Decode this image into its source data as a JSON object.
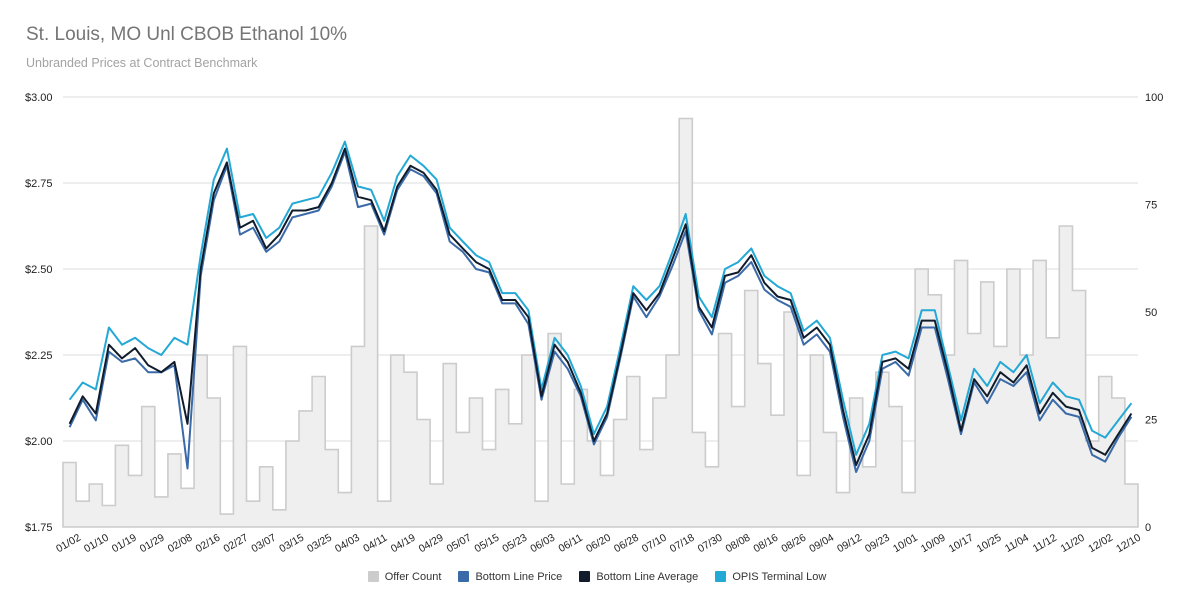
{
  "title": "St. Louis, MO Unl CBOB Ethanol 10%",
  "subtitle": "Unbranded Prices at Contract Benchmark",
  "colors": {
    "offer_count": "#cccccc",
    "offer_fill": "#efefef",
    "bottom_line_price": "#3a6aa8",
    "bottom_line_average": "#101c2c",
    "opis_terminal_low": "#24a8d6",
    "grid": "#dcdcdc"
  },
  "chart_data": {
    "type": "line",
    "title": "St. Louis, MO Unl CBOB Ethanol 10%",
    "subtitle": "Unbranded Prices at Contract Benchmark",
    "y_left": {
      "ticks": [
        "$3.00",
        "$2.75",
        "$2.50",
        "$2.25",
        "$2.00",
        "$1.75"
      ],
      "range": [
        1.75,
        3.0
      ]
    },
    "y_right": {
      "ticks": [
        "100",
        "75",
        "50",
        "25",
        "0"
      ],
      "range": [
        0,
        100
      ]
    },
    "x_ticks": [
      "01/02",
      "01/10",
      "01/19",
      "01/29",
      "02/08",
      "02/16",
      "02/27",
      "03/07",
      "03/15",
      "03/25",
      "04/03",
      "04/11",
      "04/19",
      "04/29",
      "05/07",
      "05/15",
      "05/23",
      "06/03",
      "06/11",
      "06/20",
      "06/28",
      "07/10",
      "07/18",
      "07/30",
      "08/08",
      "08/16",
      "08/26",
      "09/04",
      "09/12",
      "09/23",
      "10/01",
      "10/09",
      "10/17",
      "10/25",
      "11/04",
      "11/12",
      "11/20",
      "12/02",
      "12/10"
    ],
    "legend": [
      "Offer Count",
      "Bottom Line Price",
      "Bottom Line Average",
      "OPIS Terminal Low"
    ],
    "series": [
      {
        "name": "Bottom Line Average",
        "values": [
          2.05,
          2.13,
          2.08,
          2.28,
          2.24,
          2.27,
          2.22,
          2.2,
          2.23,
          2.05,
          2.5,
          2.72,
          2.81,
          2.62,
          2.64,
          2.56,
          2.6,
          2.67,
          2.67,
          2.68,
          2.75,
          2.85,
          2.71,
          2.7,
          2.61,
          2.74,
          2.8,
          2.78,
          2.73,
          2.6,
          2.56,
          2.52,
          2.5,
          2.41,
          2.41,
          2.36,
          2.13,
          2.28,
          2.23,
          2.14,
          2.0,
          2.08,
          2.25,
          2.43,
          2.38,
          2.43,
          2.53,
          2.63,
          2.39,
          2.33,
          2.48,
          2.49,
          2.54,
          2.46,
          2.42,
          2.41,
          2.3,
          2.33,
          2.28,
          2.09,
          1.93,
          2.02,
          2.23,
          2.24,
          2.21,
          2.35,
          2.35,
          2.2,
          2.03,
          2.18,
          2.13,
          2.2,
          2.17,
          2.22,
          2.08,
          2.14,
          2.1,
          2.09,
          1.98,
          1.96,
          2.02,
          2.08
        ]
      },
      {
        "name": "Bottom Line Price",
        "values": [
          2.04,
          2.12,
          2.06,
          2.26,
          2.23,
          2.24,
          2.2,
          2.2,
          2.22,
          1.92,
          2.48,
          2.7,
          2.8,
          2.6,
          2.62,
          2.55,
          2.58,
          2.65,
          2.66,
          2.67,
          2.74,
          2.84,
          2.68,
          2.69,
          2.6,
          2.73,
          2.79,
          2.77,
          2.72,
          2.58,
          2.55,
          2.5,
          2.49,
          2.4,
          2.4,
          2.34,
          2.12,
          2.26,
          2.21,
          2.13,
          1.99,
          2.07,
          2.24,
          2.42,
          2.36,
          2.42,
          2.51,
          2.61,
          2.38,
          2.31,
          2.46,
          2.48,
          2.52,
          2.44,
          2.41,
          2.39,
          2.28,
          2.31,
          2.26,
          2.07,
          1.91,
          2.0,
          2.21,
          2.23,
          2.19,
          2.33,
          2.33,
          2.18,
          2.02,
          2.17,
          2.11,
          2.18,
          2.16,
          2.2,
          2.06,
          2.12,
          2.08,
          2.07,
          1.96,
          1.94,
          2.01,
          2.07
        ]
      },
      {
        "name": "OPIS Terminal Low",
        "values": [
          2.12,
          2.17,
          2.15,
          2.33,
          2.28,
          2.3,
          2.27,
          2.25,
          2.3,
          2.28,
          2.54,
          2.76,
          2.85,
          2.65,
          2.66,
          2.59,
          2.62,
          2.69,
          2.7,
          2.71,
          2.78,
          2.87,
          2.74,
          2.73,
          2.64,
          2.77,
          2.83,
          2.8,
          2.76,
          2.62,
          2.58,
          2.54,
          2.52,
          2.43,
          2.43,
          2.38,
          2.15,
          2.3,
          2.25,
          2.16,
          2.02,
          2.1,
          2.27,
          2.45,
          2.41,
          2.45,
          2.55,
          2.66,
          2.42,
          2.36,
          2.5,
          2.52,
          2.56,
          2.48,
          2.45,
          2.43,
          2.32,
          2.35,
          2.3,
          2.12,
          1.96,
          2.05,
          2.25,
          2.26,
          2.24,
          2.38,
          2.38,
          2.22,
          2.06,
          2.21,
          2.16,
          2.23,
          2.2,
          2.25,
          2.11,
          2.17,
          2.13,
          2.12,
          2.03,
          2.01,
          2.06,
          2.11
        ]
      },
      {
        "name": "Offer Count",
        "axis": "right",
        "values": [
          15,
          6,
          10,
          5,
          19,
          12,
          28,
          7,
          17,
          9,
          40,
          30,
          3,
          42,
          6,
          14,
          4,
          20,
          27,
          35,
          18,
          8,
          42,
          70,
          6,
          40,
          36,
          25,
          10,
          38,
          22,
          30,
          18,
          32,
          24,
          40,
          6,
          45,
          10,
          32,
          20,
          12,
          25,
          35,
          18,
          30,
          40,
          95,
          22,
          14,
          45,
          28,
          55,
          38,
          26,
          50,
          12,
          40,
          22,
          8,
          30,
          14,
          36,
          28,
          8,
          60,
          54,
          40,
          62,
          45,
          57,
          42,
          60,
          40,
          62,
          44,
          70,
          55,
          20,
          35,
          30,
          10
        ]
      }
    ]
  }
}
